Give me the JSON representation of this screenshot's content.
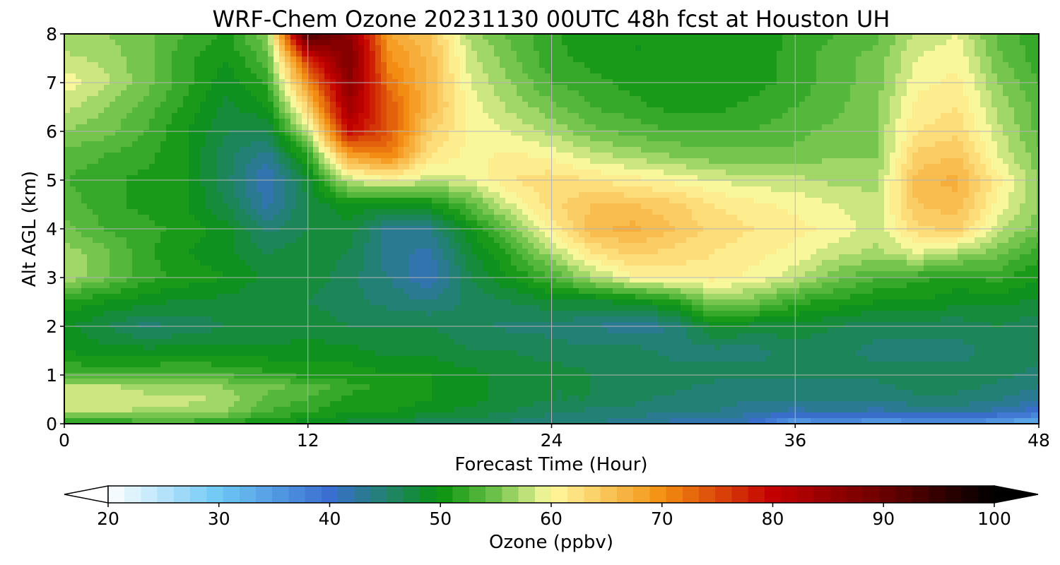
{
  "chart_data": {
    "type": "heatmap",
    "title": "WRF-Chem Ozone  20231130 00UTC 48h fcst at Houston UH",
    "xlabel": "Forecast Time (Hour)",
    "ylabel": "Alt AGL (km)",
    "xlim": [
      0,
      48
    ],
    "ylim": [
      0,
      8
    ],
    "x_ticks": [
      0,
      12,
      24,
      36,
      48
    ],
    "y_ticks": [
      0,
      1,
      2,
      3,
      4,
      5,
      6,
      7,
      8
    ],
    "grid": true,
    "colorbar": {
      "label": "Ozone  (ppbv)",
      "range": [
        20,
        100
      ],
      "ticks": [
        20,
        30,
        40,
        50,
        60,
        70,
        80,
        90,
        100
      ],
      "extend": "both",
      "colormap_stops": [
        {
          "v": 20,
          "c": "#ffffff"
        },
        {
          "v": 30,
          "c": "#6ec8f5"
        },
        {
          "v": 40,
          "c": "#3a6ed0"
        },
        {
          "v": 50,
          "c": "#0a9410"
        },
        {
          "v": 55,
          "c": "#6ec24a"
        },
        {
          "v": 60,
          "c": "#fffaa0"
        },
        {
          "v": 70,
          "c": "#f39012"
        },
        {
          "v": 80,
          "c": "#c30000"
        },
        {
          "v": 90,
          "c": "#6a0000"
        },
        {
          "v": 100,
          "c": "#000000"
        }
      ]
    },
    "hours": [
      0,
      2,
      4,
      6,
      8,
      10,
      12,
      14,
      16,
      18,
      20,
      22,
      24,
      26,
      28,
      30,
      32,
      34,
      36,
      38,
      40,
      42,
      44,
      46,
      48
    ],
    "altitudes_km": [
      0.0,
      0.25,
      0.5,
      0.75,
      1.0,
      1.5,
      2.0,
      2.5,
      3.0,
      3.5,
      4.0,
      4.5,
      5.0,
      5.5,
      6.0,
      6.5,
      7.0,
      7.5,
      8.0
    ],
    "values_ppbv": [
      [
        51,
        51,
        52,
        52,
        51,
        50,
        49,
        48,
        47,
        46,
        46,
        45,
        44,
        44,
        43,
        42,
        42,
        40,
        34,
        36,
        34,
        35,
        36,
        34,
        32
      ],
      [
        58,
        58,
        57,
        57,
        56,
        53,
        52,
        50,
        50,
        49,
        48,
        47,
        46,
        45,
        45,
        44,
        44,
        43,
        42,
        43,
        42,
        43,
        43,
        42,
        40
      ],
      [
        59,
        59,
        58,
        58,
        57,
        54,
        53,
        51,
        51,
        50,
        49,
        48,
        47,
        47,
        46,
        45,
        45,
        44,
        44,
        44,
        44,
        45,
        45,
        44,
        43
      ],
      [
        58,
        58,
        57,
        57,
        56,
        55,
        54,
        52,
        51,
        50,
        49,
        48,
        47,
        47,
        46,
        46,
        45,
        45,
        45,
        45,
        45,
        46,
        46,
        45,
        44
      ],
      [
        53,
        53,
        53,
        54,
        53,
        52,
        51,
        51,
        50,
        50,
        49,
        48,
        48,
        47,
        47,
        46,
        46,
        46,
        46,
        46,
        46,
        46,
        46,
        46,
        45
      ],
      [
        50,
        49,
        49,
        49,
        49,
        49,
        49,
        49,
        48,
        48,
        47,
        47,
        46,
        46,
        46,
        45,
        45,
        45,
        46,
        46,
        45,
        45,
        45,
        46,
        46
      ],
      [
        49,
        47,
        45,
        46,
        47,
        47,
        48,
        47,
        47,
        47,
        46,
        45,
        45,
        44,
        43,
        44,
        49,
        48,
        48,
        47,
        46,
        46,
        46,
        47,
        46
      ],
      [
        51,
        50,
        49,
        48,
        48,
        47,
        47,
        46,
        45,
        44,
        46,
        47,
        48,
        48,
        49,
        51,
        56,
        55,
        52,
        51,
        50,
        50,
        49,
        49,
        48
      ],
      [
        57,
        55,
        52,
        51,
        50,
        48,
        48,
        46,
        44,
        41,
        47,
        50,
        53,
        57,
        60,
        61,
        61,
        60,
        58,
        55,
        53,
        52,
        51,
        52,
        50
      ],
      [
        57,
        55,
        52,
        50,
        49,
        47,
        48,
        47,
        43,
        42,
        48,
        52,
        57,
        62,
        64,
        63,
        62,
        61,
        60,
        58,
        57,
        59,
        57,
        55,
        52
      ],
      [
        55,
        53,
        52,
        51,
        49,
        45,
        47,
        48,
        43,
        44,
        50,
        55,
        61,
        66,
        67,
        65,
        63,
        62,
        61,
        60,
        58,
        63,
        64,
        58,
        55
      ],
      [
        54,
        52,
        51,
        50,
        47,
        42,
        47,
        50,
        49,
        50,
        54,
        59,
        63,
        65,
        65,
        64,
        62,
        61,
        60,
        59,
        58,
        65,
        66,
        60,
        56
      ],
      [
        53,
        52,
        51,
        50,
        46,
        41,
        48,
        58,
        60,
        58,
        59,
        62,
        63,
        62,
        61,
        60,
        59,
        58,
        58,
        57,
        57,
        66,
        67,
        61,
        56
      ],
      [
        54,
        53,
        52,
        50,
        46,
        43,
        52,
        68,
        71,
        62,
        60,
        61,
        60,
        58,
        57,
        56,
        55,
        55,
        55,
        56,
        56,
        64,
        65,
        59,
        55
      ],
      [
        56,
        55,
        53,
        50,
        47,
        47,
        58,
        80,
        74,
        64,
        60,
        59,
        57,
        55,
        54,
        53,
        53,
        53,
        54,
        55,
        56,
        62,
        63,
        58,
        54
      ],
      [
        58,
        56,
        54,
        51,
        48,
        50,
        64,
        84,
        74,
        66,
        60,
        57,
        55,
        53,
        52,
        51,
        51,
        52,
        53,
        54,
        56,
        61,
        62,
        57,
        54
      ],
      [
        60,
        58,
        55,
        52,
        49,
        52,
        70,
        86,
        72,
        66,
        59,
        56,
        53,
        52,
        51,
        50,
        50,
        51,
        52,
        54,
        55,
        60,
        61,
        56,
        53
      ],
      [
        58,
        57,
        55,
        52,
        50,
        54,
        78,
        88,
        70,
        66,
        58,
        55,
        52,
        51,
        50,
        50,
        50,
        51,
        52,
        54,
        55,
        59,
        60,
        55,
        52
      ],
      [
        56,
        56,
        55,
        53,
        51,
        56,
        94,
        86,
        68,
        65,
        57,
        54,
        52,
        50,
        50,
        50,
        50,
        50,
        52,
        53,
        54,
        58,
        59,
        54,
        52
      ]
    ]
  }
}
